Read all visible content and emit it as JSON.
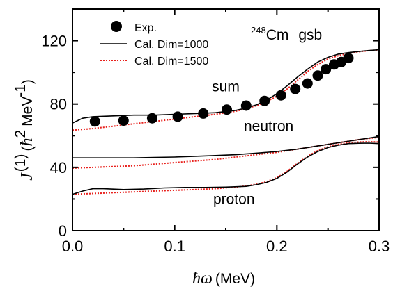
{
  "chart_data": {
    "type": "line",
    "title": "",
    "annotation": {
      "mass_number": "248",
      "element": "Cm",
      "band": "gsb"
    },
    "xlabel": {
      "symbol": "ħω",
      "unit": "(MeV)"
    },
    "ylabel": {
      "symbol": "J",
      "sup": "(1)",
      "open_paren": "(",
      "hbar": "ħ",
      "sq": "2",
      "unit": "MeV",
      "inv": "-1",
      "close_paren": ")"
    },
    "xlim": [
      0.0,
      0.3
    ],
    "ylim": [
      0,
      140
    ],
    "xticks": [
      {
        "value": 0.0,
        "label": "0.0"
      },
      {
        "value": 0.1,
        "label": "0.1"
      },
      {
        "value": 0.2,
        "label": "0.2"
      },
      {
        "value": 0.3,
        "label": "0.3"
      }
    ],
    "yticks": [
      {
        "value": 0,
        "label": "0"
      },
      {
        "value": 40,
        "label": "40"
      },
      {
        "value": 80,
        "label": "80"
      },
      {
        "value": 120,
        "label": "120"
      }
    ],
    "grid": false,
    "legend": {
      "position": "top-left",
      "entries": [
        {
          "label": "Exp.",
          "kind": "marker"
        },
        {
          "label": "Cal. Dim=1000",
          "kind": "solid"
        },
        {
          "label": "Cal. Dim=1500",
          "kind": "dotted"
        }
      ]
    },
    "colors": {
      "exp": "#000000",
      "dim1000": "#000000",
      "dim1500": "#e8201c"
    },
    "groups": [
      {
        "label": "sum",
        "label_at": [
          0.15,
          88
        ]
      },
      {
        "label": "neutron",
        "label_at": [
          0.192,
          63
        ]
      },
      {
        "label": "proton",
        "label_at": [
          0.158,
          17
        ]
      }
    ],
    "series": [
      {
        "name": "Exp.",
        "kind": "marker",
        "x": [
          0.022,
          0.05,
          0.078,
          0.103,
          0.128,
          0.151,
          0.17,
          0.188,
          0.204,
          0.218,
          0.23,
          0.24,
          0.248,
          0.256,
          0.263,
          0.27
        ],
        "y": [
          69,
          69.5,
          71,
          72,
          74,
          76.5,
          79,
          82,
          85.5,
          89.5,
          93,
          98,
          102,
          105,
          106.5,
          109
        ]
      },
      {
        "name": "Cal. Dim=1000",
        "group": "sum",
        "kind": "solid",
        "x": [
          0.0,
          0.01,
          0.02,
          0.04,
          0.06,
          0.08,
          0.1,
          0.12,
          0.14,
          0.16,
          0.17,
          0.18,
          0.19,
          0.2,
          0.21,
          0.22,
          0.23,
          0.24,
          0.25,
          0.26,
          0.27,
          0.28,
          0.29,
          0.3
        ],
        "y": [
          68,
          71,
          72,
          72.5,
          73,
          73,
          73.5,
          74,
          74.5,
          76,
          77.5,
          79.5,
          82.5,
          86.5,
          91.5,
          97,
          102,
          106.5,
          109.5,
          111.5,
          112.5,
          113.2,
          113.8,
          114.3
        ]
      },
      {
        "name": "Cal. Dim=1500",
        "group": "sum",
        "kind": "dotted",
        "x": [
          0.0,
          0.02,
          0.04,
          0.06,
          0.08,
          0.1,
          0.12,
          0.14,
          0.16,
          0.17,
          0.18,
          0.19,
          0.2,
          0.21,
          0.22,
          0.23,
          0.24,
          0.25,
          0.26,
          0.27,
          0.28,
          0.29,
          0.3
        ],
        "y": [
          63.5,
          64.5,
          66,
          67.5,
          69,
          70.5,
          72,
          73.5,
          75.5,
          77,
          79,
          81.5,
          85,
          89.5,
          95,
          100.5,
          105,
          108.5,
          110.5,
          112,
          113,
          113.7,
          114.2
        ]
      },
      {
        "name": "Cal. Dim=1000",
        "group": "neutron",
        "kind": "solid",
        "x": [
          0.0,
          0.02,
          0.04,
          0.06,
          0.08,
          0.1,
          0.12,
          0.14,
          0.16,
          0.18,
          0.2,
          0.22,
          0.24,
          0.26,
          0.28,
          0.3
        ],
        "y": [
          46,
          46,
          46,
          46,
          46.3,
          46.5,
          47,
          47.5,
          48,
          49,
          50,
          51.5,
          53.5,
          55.5,
          57.5,
          59.5
        ]
      },
      {
        "name": "Cal. Dim=1500",
        "group": "neutron",
        "kind": "dotted",
        "x": [
          0.0,
          0.02,
          0.04,
          0.06,
          0.08,
          0.1,
          0.12,
          0.14,
          0.16,
          0.18,
          0.2,
          0.22,
          0.24,
          0.26,
          0.28,
          0.3
        ],
        "y": [
          39.5,
          40,
          40.5,
          41,
          42,
          43,
          44,
          45,
          46.5,
          48,
          49.5,
          51.5,
          53.5,
          55.5,
          57.5,
          59
        ]
      },
      {
        "name": "Cal. Dim=1000",
        "group": "proton",
        "kind": "solid",
        "x": [
          0.0,
          0.01,
          0.02,
          0.03,
          0.05,
          0.07,
          0.09,
          0.11,
          0.13,
          0.15,
          0.17,
          0.18,
          0.19,
          0.2,
          0.21,
          0.22,
          0.23,
          0.24,
          0.25,
          0.26,
          0.27,
          0.28,
          0.29,
          0.3
        ],
        "y": [
          23,
          25,
          26.5,
          26.5,
          26,
          26.3,
          27,
          27.3,
          27.3,
          27.5,
          28,
          29,
          30.5,
          33,
          37,
          42,
          46.5,
          50,
          52.5,
          54,
          55,
          55.2,
          55.3,
          55
        ]
      },
      {
        "name": "Cal. Dim=1500",
        "group": "proton",
        "kind": "dotted",
        "x": [
          0.0,
          0.02,
          0.04,
          0.06,
          0.08,
          0.1,
          0.12,
          0.14,
          0.16,
          0.17,
          0.18,
          0.19,
          0.2,
          0.21,
          0.22,
          0.23,
          0.24,
          0.25,
          0.26,
          0.27,
          0.28,
          0.29,
          0.3
        ],
        "y": [
          23,
          23.5,
          24,
          24.5,
          25,
          25.5,
          26,
          26.5,
          27.5,
          28.3,
          29.3,
          31,
          33.5,
          37.5,
          42.5,
          47,
          50.5,
          53,
          54.5,
          55.5,
          56,
          56.2,
          56
        ]
      }
    ]
  }
}
